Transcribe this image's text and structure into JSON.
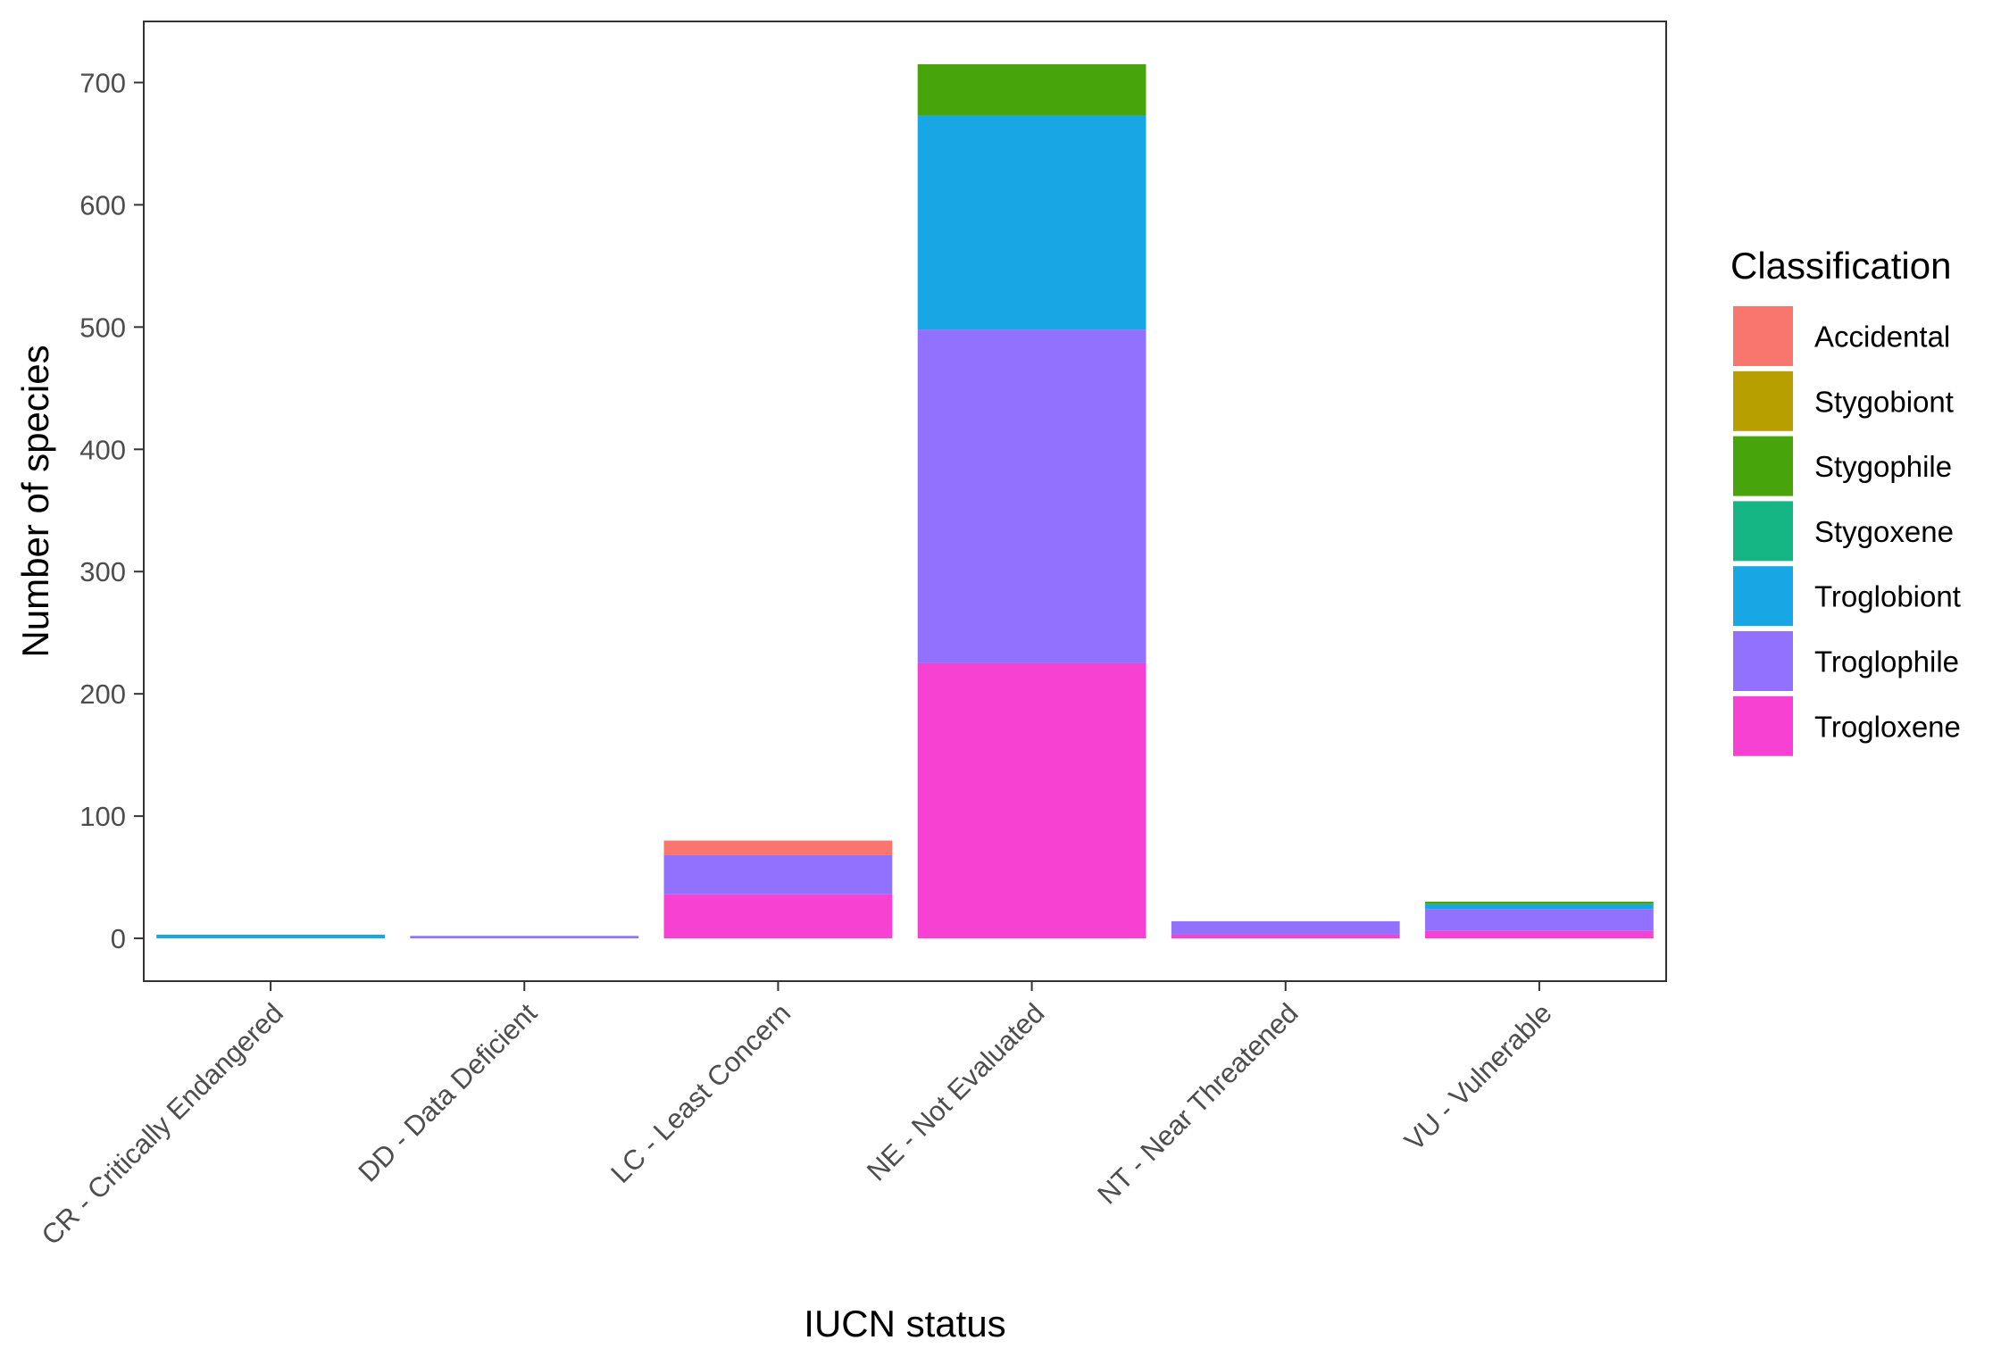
{
  "chart_data": {
    "type": "bar",
    "stacked": true,
    "xlabel": "IUCN status",
    "ylabel": "Number of species",
    "ylim": [
      -35,
      750
    ],
    "yticks": [
      0,
      100,
      200,
      300,
      400,
      500,
      600,
      700
    ],
    "grid": false,
    "legend_position": "right",
    "legend_title": "Classification",
    "categories": [
      "CR - Critically Endangered",
      "DD - Data Deficient",
      "LC - Least Concern",
      "NE - Not Evaluated",
      "NT - Near Threatened",
      "VU - Vulnerable"
    ],
    "series": [
      {
        "name": "Accidental",
        "color": "#F8766D",
        "values": [
          0,
          0,
          12,
          0,
          0,
          0
        ]
      },
      {
        "name": "Stygobiont",
        "color": "#B79F00",
        "values": [
          0,
          0,
          0,
          0,
          0,
          0
        ]
      },
      {
        "name": "Stygophile",
        "color": "#47A40B",
        "values": [
          0,
          0,
          0,
          42,
          0,
          2
        ]
      },
      {
        "name": "Stygoxene",
        "color": "#15B584",
        "values": [
          0,
          0,
          0,
          0,
          0,
          0
        ]
      },
      {
        "name": "Troglobiont",
        "color": "#17A7E4",
        "values": [
          3,
          0,
          0,
          175,
          0,
          4
        ]
      },
      {
        "name": "Troglophile",
        "color": "#9371FF",
        "values": [
          0,
          2,
          32,
          273,
          11,
          18
        ]
      },
      {
        "name": "Trogloxene",
        "color": "#F641D2",
        "values": [
          0,
          0,
          36,
          225,
          3,
          6
        ]
      }
    ]
  }
}
